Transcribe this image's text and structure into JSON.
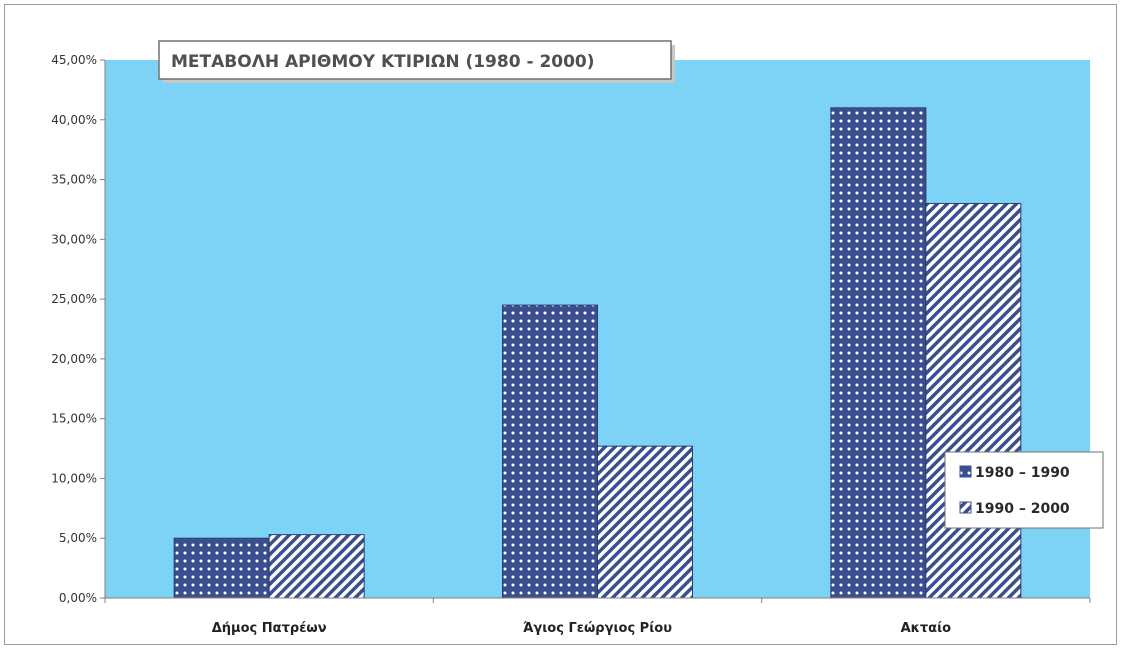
{
  "chart_data": {
    "type": "bar",
    "title": "ΜΕΤΑΒΟΛΗ ΑΡΙΘΜΟΥ ΚΤΙΡΙΩΝ (1980 - 2000)",
    "xlabel": "",
    "ylabel": "",
    "categories": [
      "Δήμος Πατρέων",
      "Άγιος Γεώργιος Ρίου",
      "Ακταίο"
    ],
    "series": [
      {
        "name": "1980 – 1990",
        "values": [
          5.0,
          24.5,
          41.0
        ],
        "pattern": "dots",
        "color": "#3b4f8f"
      },
      {
        "name": "1990 – 2000",
        "values": [
          5.3,
          12.7,
          33.0
        ],
        "pattern": "hatch",
        "color": "#3b4f8f"
      }
    ],
    "ylim": [
      0,
      45
    ],
    "yticks": [
      0,
      5,
      10,
      15,
      20,
      25,
      30,
      35,
      40,
      45
    ],
    "ytick_labels": [
      "0,00%",
      "5,00%",
      "10,00%",
      "15,00%",
      "20,00%",
      "25,00%",
      "30,00%",
      "35,00%",
      "40,00%",
      "45,00%"
    ],
    "grid": false,
    "legend_position": "right",
    "plot_background": "#7dd3f5"
  }
}
